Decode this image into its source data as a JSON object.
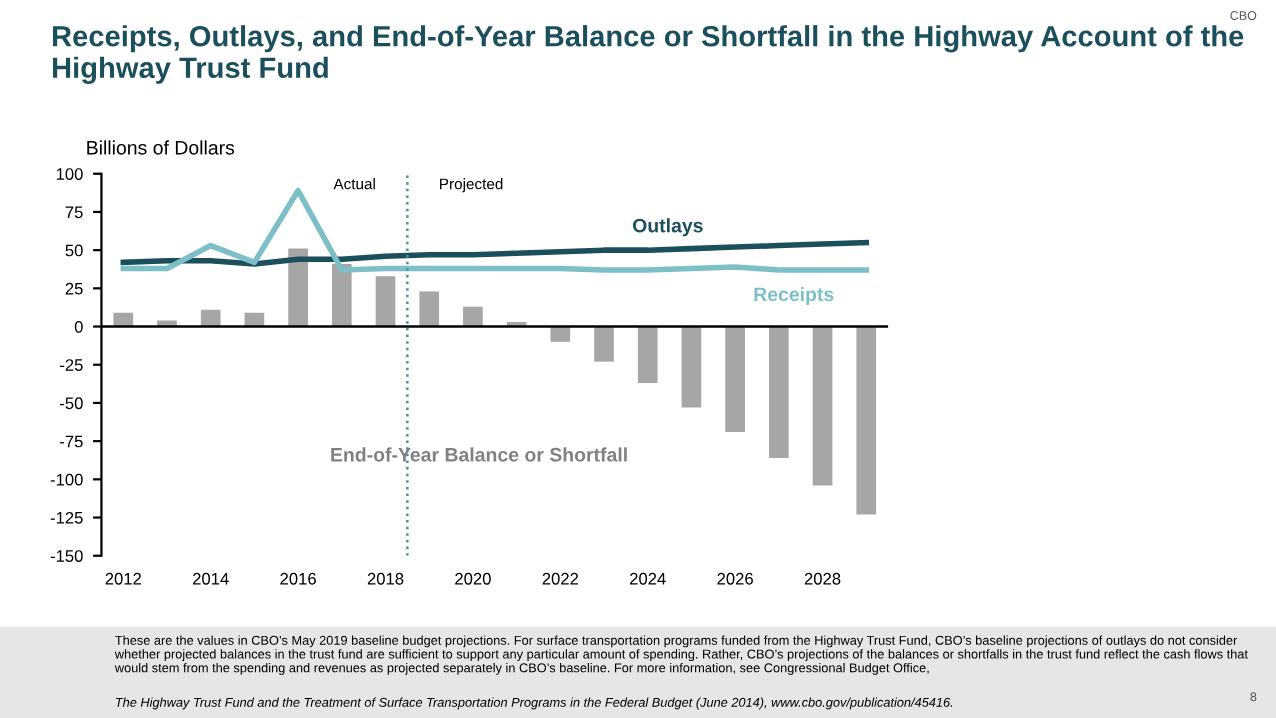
{
  "chart_data": {
    "type": "bar",
    "title": "Receipts, Outlays, and End-of-Year Balance or Shortfall in the Highway Account of the Highway Trust Fund",
    "ylabel": "Billions of Dollars",
    "x": [
      2012,
      2013,
      2014,
      2015,
      2016,
      2017,
      2018,
      2019,
      2020,
      2021,
      2022,
      2023,
      2024,
      2025,
      2026,
      2027,
      2028,
      2029
    ],
    "series": [
      {
        "name": "End-of-Year Balance or Shortfall",
        "color": "#a6a6a6",
        "values": [
          9,
          4,
          11,
          9,
          51,
          41,
          33,
          23,
          13,
          3,
          -10,
          -23,
          -37,
          -53,
          -69,
          -86,
          -104,
          -123
        ]
      },
      {
        "name": "Outlays",
        "type": "line",
        "color": "#1c4f5c",
        "values": [
          42,
          43,
          43,
          41,
          44,
          44,
          46,
          47,
          47,
          48,
          49,
          50,
          50,
          51,
          52,
          53,
          54,
          55
        ]
      },
      {
        "name": "Receipts",
        "type": "line",
        "color": "#7dbfc6",
        "values": [
          38,
          38,
          53,
          42,
          89,
          37,
          38,
          38,
          38,
          38,
          38,
          37,
          37,
          38,
          39,
          37,
          37,
          37
        ]
      }
    ],
    "xlim": [
      2011.5,
      2029.5
    ],
    "xticks": [
      2012,
      2014,
      2016,
      2018,
      2020,
      2022,
      2024,
      2026,
      2028
    ],
    "ylim": [
      -150,
      100
    ],
    "yticks": [
      -150,
      -125,
      -100,
      -75,
      -50,
      -25,
      0,
      25,
      50,
      75,
      100
    ],
    "ref_lines": [
      {
        "axis": "x",
        "value": 2018.5,
        "color": "#4a8fa8",
        "line_style": "dotted"
      },
      {
        "axis": "y",
        "value": 0,
        "color": "#000000",
        "line_style": "solid"
      }
    ],
    "annotations": [
      "Actual",
      "Projected",
      "These are the values in CBO’s May 2019 baseline budget projections. For surface transportation programs funded from the Highway Trust Fund, CBO’s baseline projections of outlays do not consider whether projected balances in the trust fund are sufficient to support any particular amount of spending. Rather, CBO’s projections of the balances or shortfalls in the trust fund reflect the cash flows that would stem from the spending and revenues as projected separately in CBO’s baseline. For more information, see Congressional Budget Office,",
      "The Highway Trust Fund and the Treatment of Surface Transportation Programs in the Federal Budget (June 2014), www.cbo.gov/publication/45416.",
      "CBO",
      "8"
    ],
    "grid": false,
    "legend": false,
    "marker": "none",
    "line_style": "solid"
  }
}
